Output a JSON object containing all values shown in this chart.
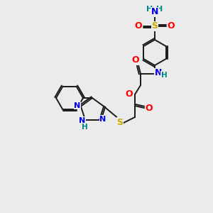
{
  "bg_color": "#ebebeb",
  "bond_color": "#1a1a1a",
  "colors": {
    "O": "#ff0000",
    "N": "#0000ee",
    "S": "#ccaa00",
    "H": "#008888",
    "C": "#1a1a1a"
  },
  "figsize": [
    3.0,
    3.0
  ],
  "dpi": 100
}
